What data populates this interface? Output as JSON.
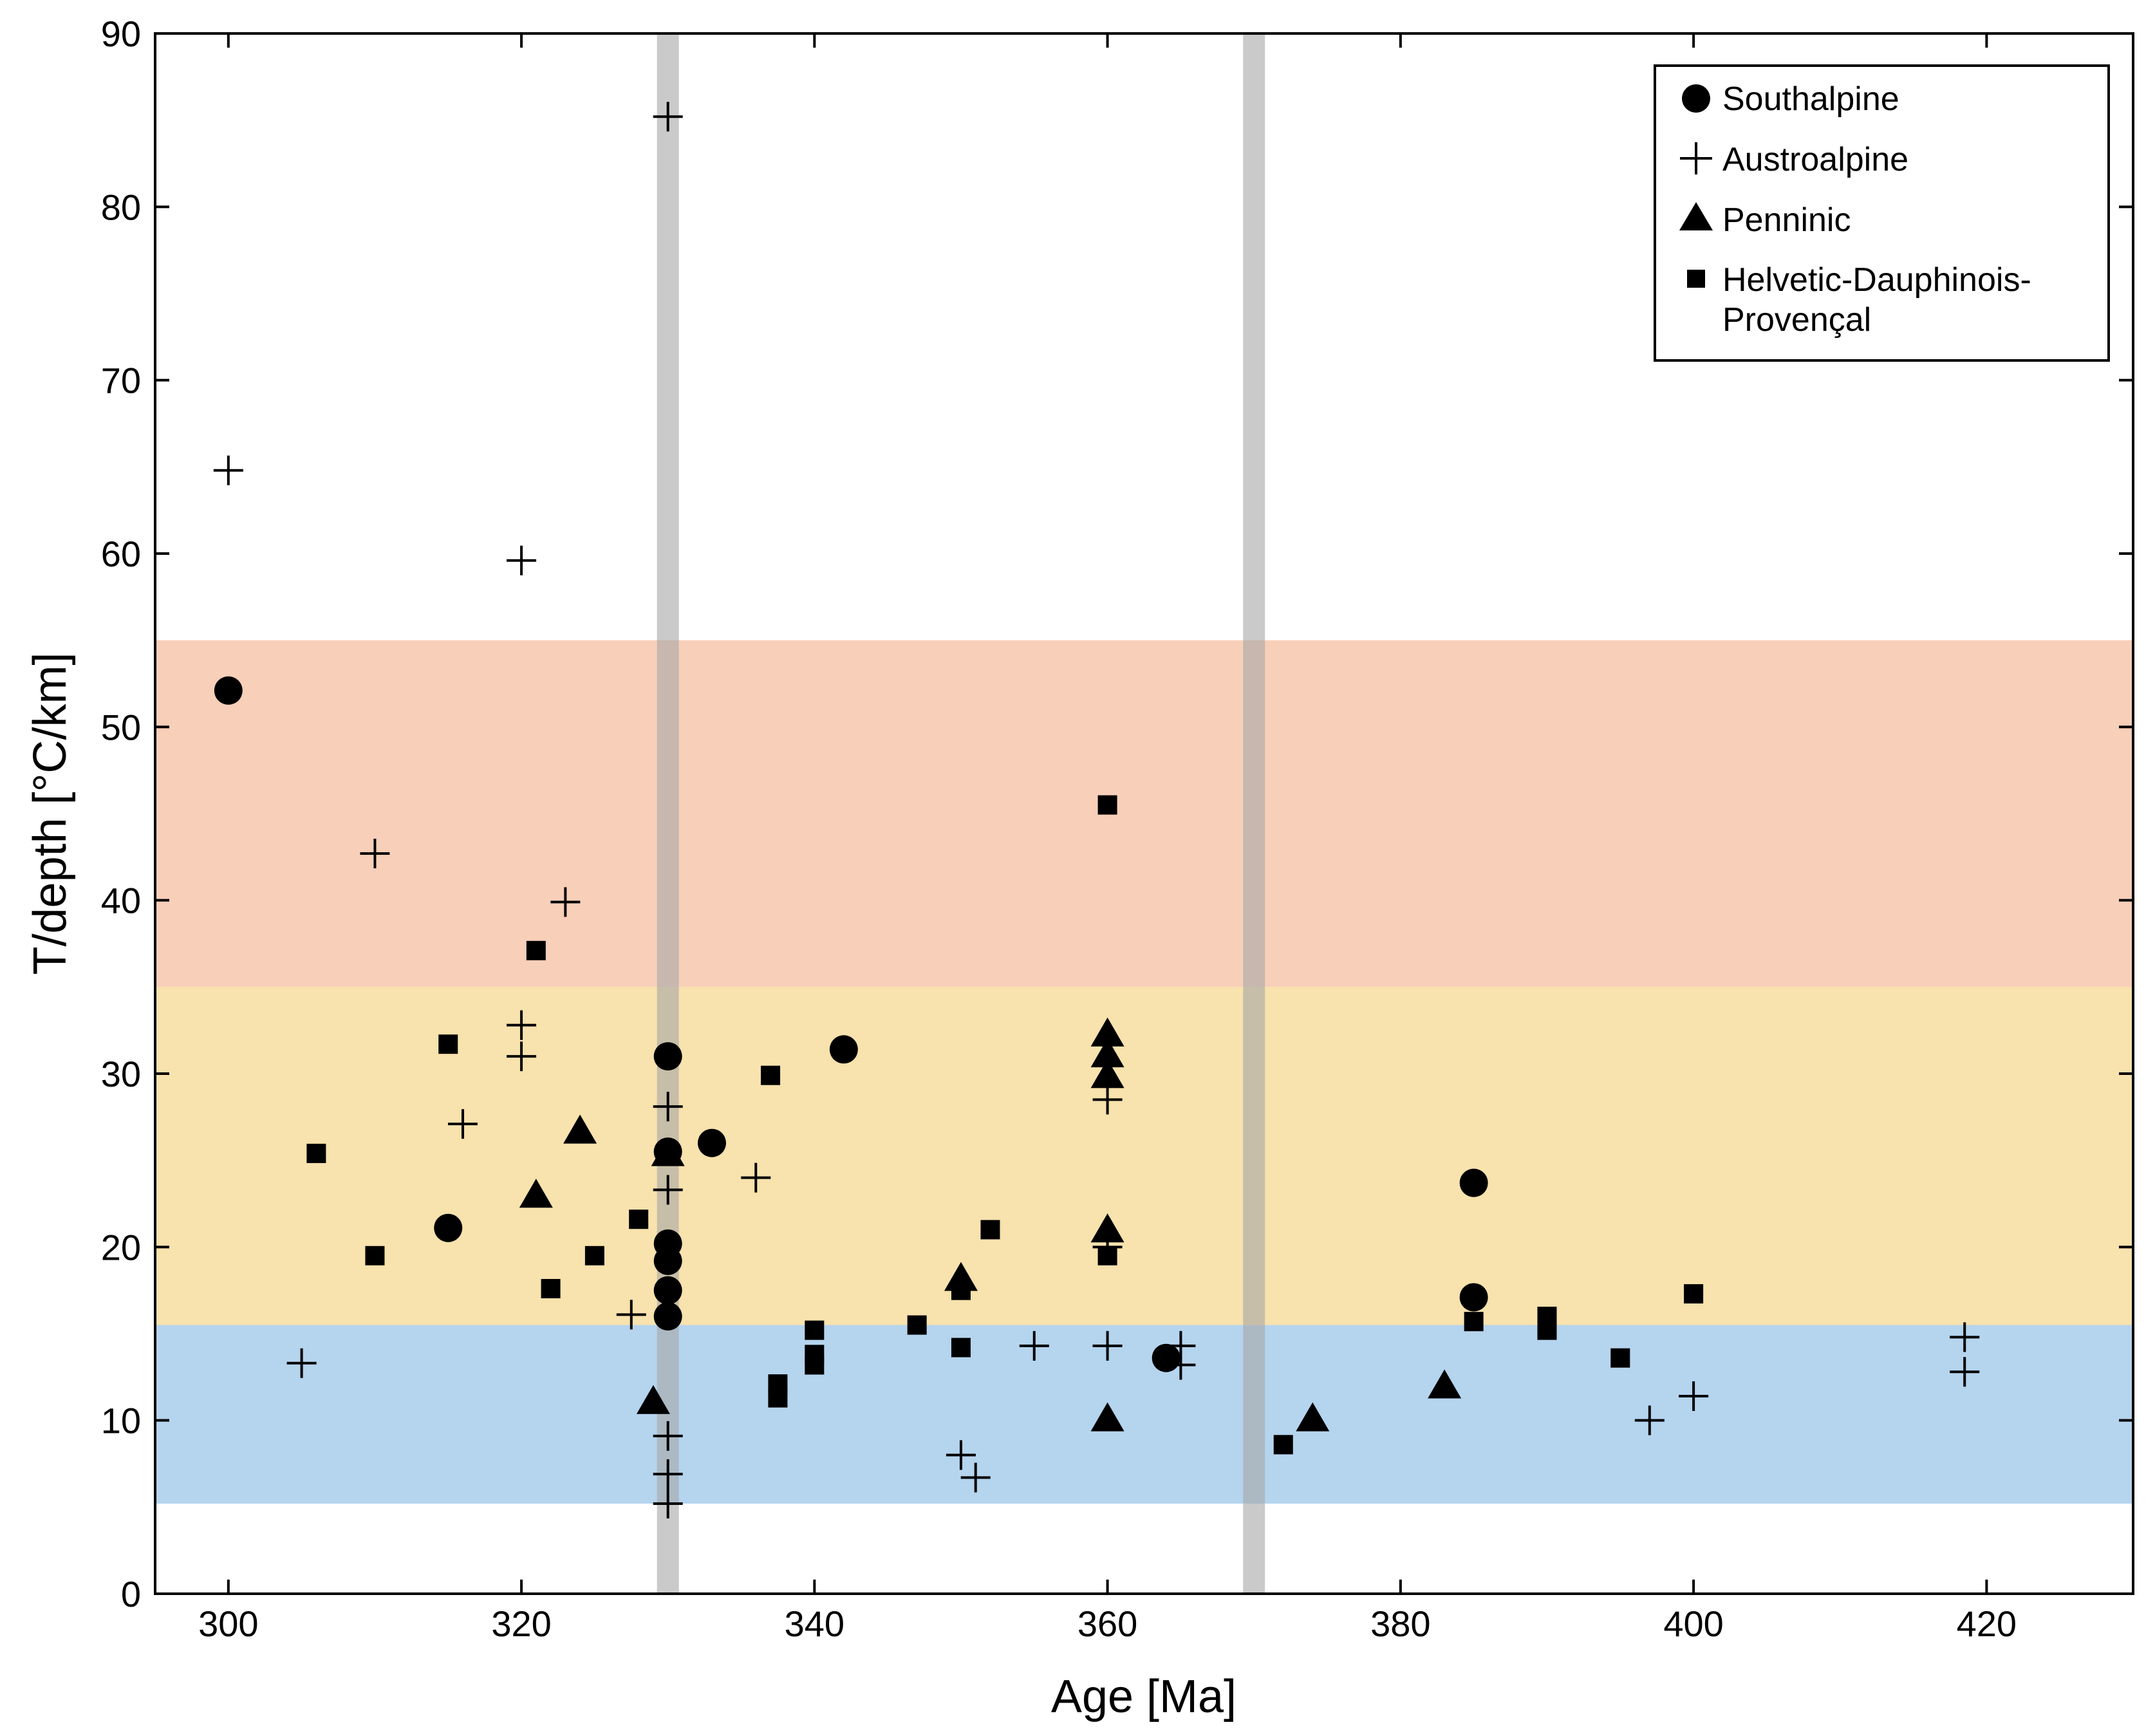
{
  "chart_data": {
    "type": "scatter",
    "title": "",
    "xlabel": "Age [Ma]",
    "ylabel": "T/depth [°C/km]",
    "xlim": [
      295,
      430
    ],
    "ylim": [
      0,
      90
    ],
    "xticks": [
      300,
      320,
      340,
      360,
      380,
      400,
      420
    ],
    "yticks": [
      0,
      10,
      20,
      30,
      40,
      50,
      60,
      70,
      80,
      90
    ],
    "grid": false,
    "legend_position": "top-right",
    "bands": [
      {
        "name": "high-gradient-band",
        "y_range": [
          35,
          55
        ],
        "color": "#f8cfb9"
      },
      {
        "name": "medium-gradient-band",
        "y_range": [
          15.5,
          35
        ],
        "color": "#f8e2ad"
      },
      {
        "name": "low-gradient-band",
        "y_range": [
          5.2,
          15.5
        ],
        "color": "#b5d4ee"
      }
    ],
    "vertical_markers": [
      {
        "name": "marker-330",
        "x": 330,
        "color": "#a6a6a6",
        "opacity": 0.6
      },
      {
        "name": "marker-370",
        "x": 370,
        "color": "#a6a6a6",
        "opacity": 0.6
      }
    ],
    "series": [
      {
        "name": "Southalpine",
        "marker": "circle",
        "points": [
          [
            300,
            52.1
          ],
          [
            315,
            21.1
          ],
          [
            330,
            31.0
          ],
          [
            330,
            25.5
          ],
          [
            330,
            20.2
          ],
          [
            330,
            19.2
          ],
          [
            330,
            17.5
          ],
          [
            330,
            16.0
          ],
          [
            333,
            26.0
          ],
          [
            342,
            31.4
          ],
          [
            364,
            13.6
          ],
          [
            385,
            23.7
          ],
          [
            385,
            17.1
          ]
        ]
      },
      {
        "name": "Austroalpine",
        "marker": "plus",
        "points": [
          [
            300,
            64.8
          ],
          [
            305,
            13.3
          ],
          [
            310,
            42.7
          ],
          [
            316,
            27.1
          ],
          [
            320,
            59.6
          ],
          [
            320,
            32.8
          ],
          [
            320,
            31.0
          ],
          [
            323,
            39.9
          ],
          [
            327.5,
            16.1
          ],
          [
            330,
            85.2
          ],
          [
            330,
            28.1
          ],
          [
            330,
            23.3
          ],
          [
            330,
            9.1
          ],
          [
            330,
            6.9
          ],
          [
            330,
            5.2
          ],
          [
            336,
            24.0
          ],
          [
            350,
            8.0
          ],
          [
            351,
            6.7
          ],
          [
            355,
            14.3
          ],
          [
            360,
            28.5
          ],
          [
            360,
            20.0
          ],
          [
            360,
            14.3
          ],
          [
            365,
            14.3
          ],
          [
            365,
            13.2
          ],
          [
            397,
            10.0
          ],
          [
            400,
            11.4
          ],
          [
            418.5,
            14.8
          ],
          [
            418.5,
            12.8
          ]
        ]
      },
      {
        "name": "Penninic",
        "marker": "triangle",
        "points": [
          [
            321,
            22.9
          ],
          [
            324,
            26.6
          ],
          [
            329,
            11.0
          ],
          [
            330,
            25.3
          ],
          [
            350,
            18.1
          ],
          [
            360,
            32.2
          ],
          [
            360,
            31.0
          ],
          [
            360,
            29.8
          ],
          [
            360,
            20.9
          ],
          [
            360,
            10.0
          ],
          [
            374,
            10.0
          ],
          [
            383,
            11.9
          ]
        ]
      },
      {
        "name": "Helvetic-Dauphinois-Provençal",
        "marker": "square",
        "points": [
          [
            306,
            25.4
          ],
          [
            310,
            19.5
          ],
          [
            315,
            31.7
          ],
          [
            321,
            37.1
          ],
          [
            322,
            17.6
          ],
          [
            325,
            19.5
          ],
          [
            328,
            21.6
          ],
          [
            337,
            29.9
          ],
          [
            337.5,
            12.1
          ],
          [
            337.5,
            11.3
          ],
          [
            340,
            15.2
          ],
          [
            340,
            13.8
          ],
          [
            340,
            13.2
          ],
          [
            347,
            15.5
          ],
          [
            350,
            17.5
          ],
          [
            350,
            14.2
          ],
          [
            352,
            21.0
          ],
          [
            360,
            45.5
          ],
          [
            360,
            19.5
          ],
          [
            372,
            8.6
          ],
          [
            385,
            15.7
          ],
          [
            390,
            16.0
          ],
          [
            390,
            15.2
          ],
          [
            395,
            13.6
          ],
          [
            400,
            17.3
          ]
        ]
      }
    ]
  },
  "legend": {
    "items": [
      {
        "label": "Southalpine",
        "marker": "circle"
      },
      {
        "label": "Austroalpine",
        "marker": "plus"
      },
      {
        "label": "Penninic",
        "marker": "triangle"
      },
      {
        "label": "Helvetic-Dauphinois-",
        "label_line2": "Provençal",
        "marker": "square"
      }
    ]
  }
}
